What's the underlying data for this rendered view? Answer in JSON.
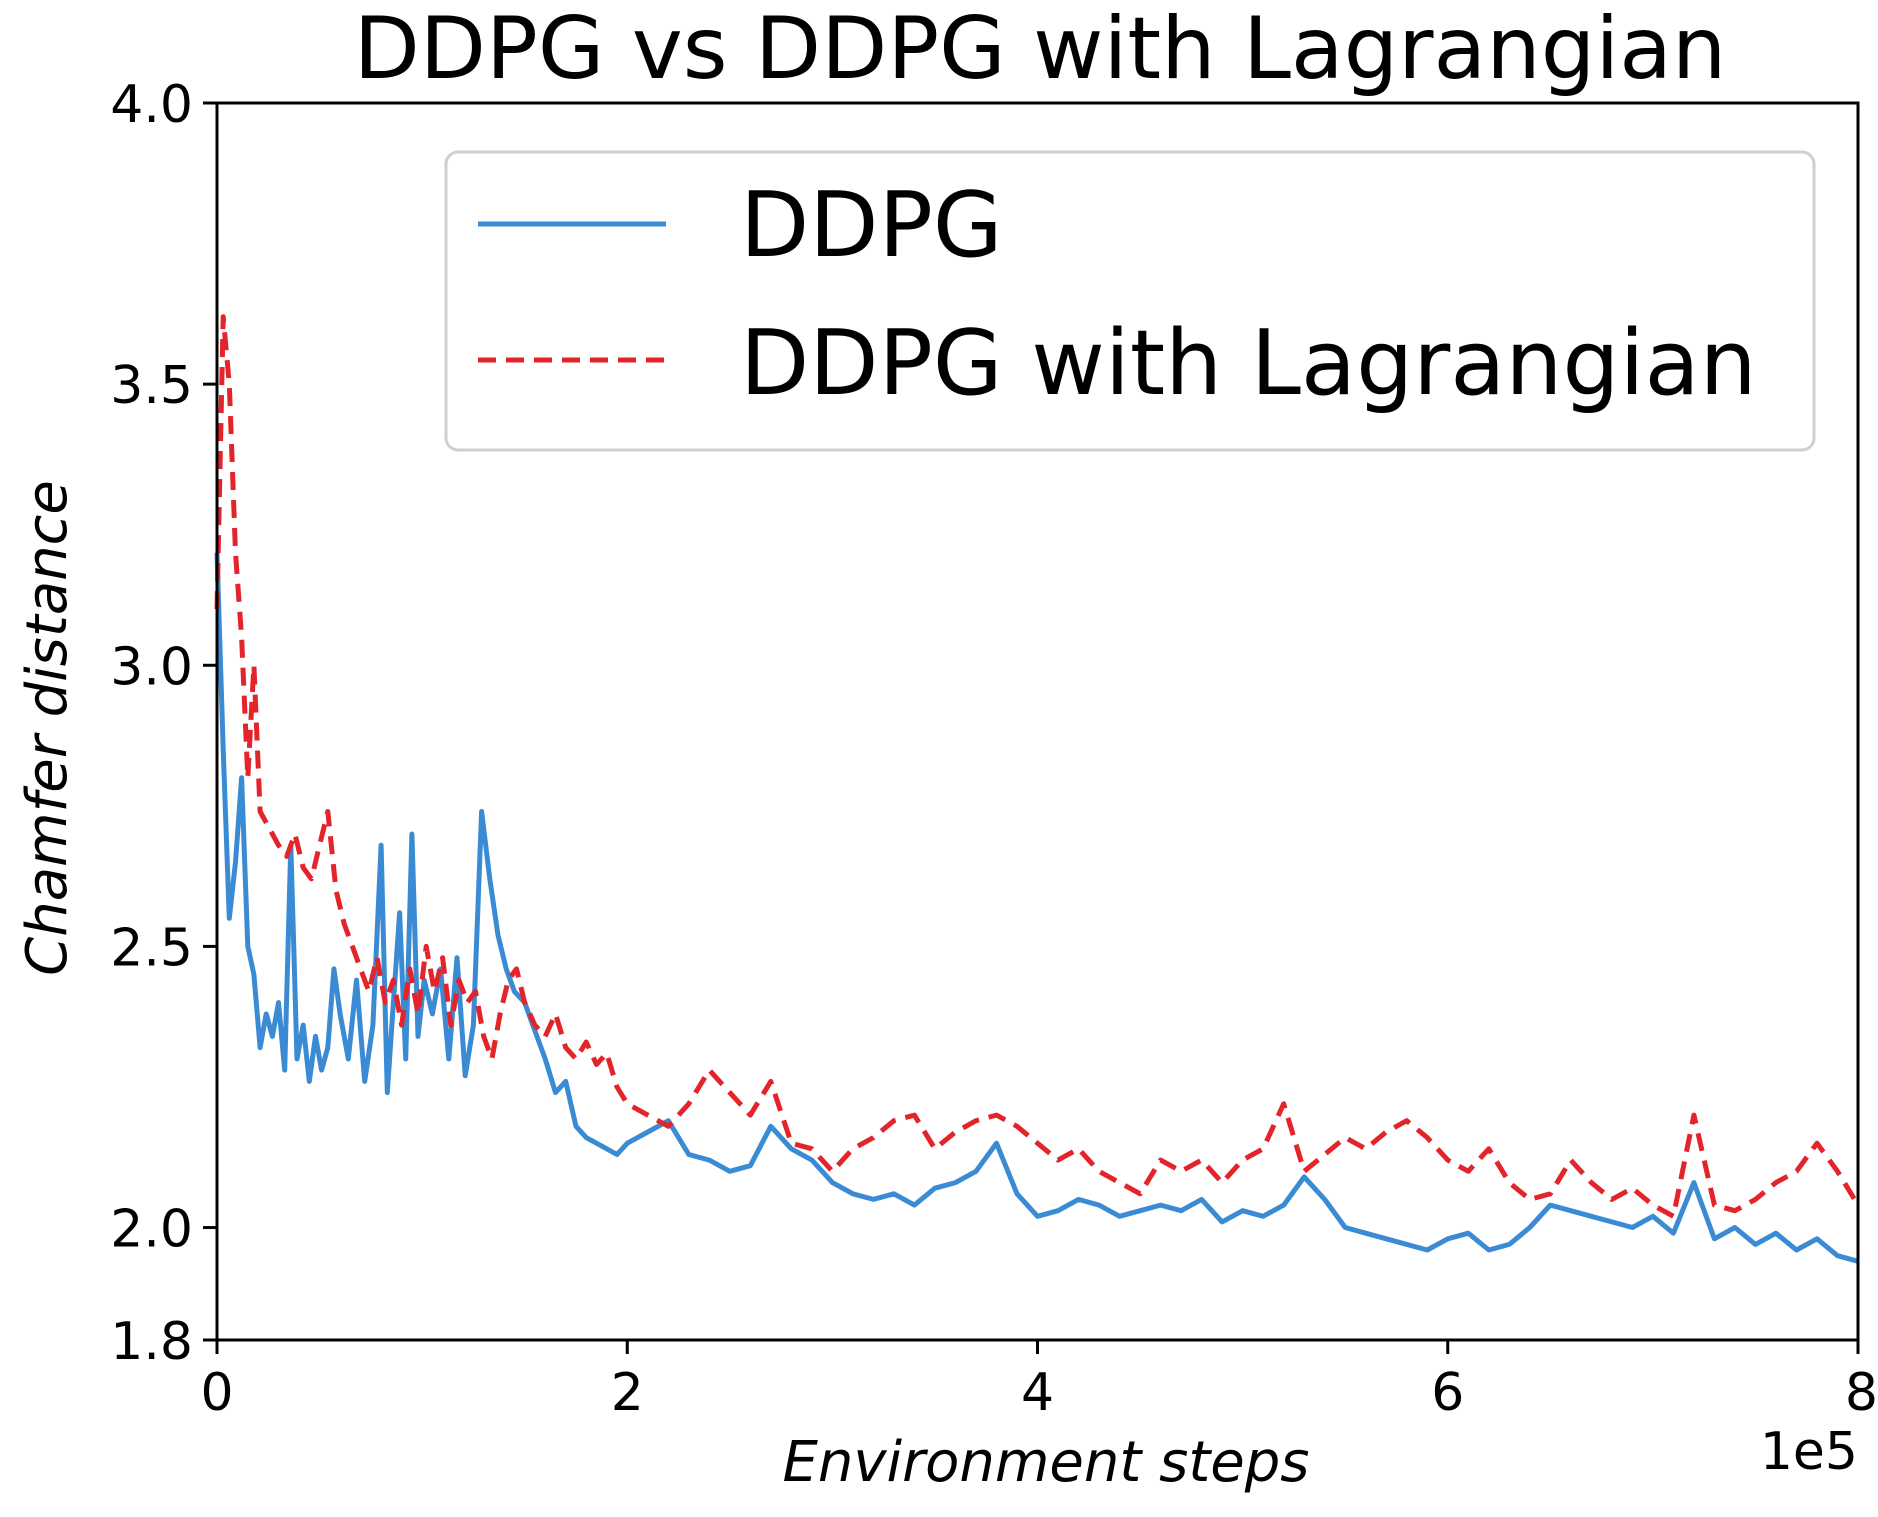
{
  "chart_data": {
    "type": "line",
    "title": "DDPG vs DDPG with Lagrangian",
    "xlabel": "Environment steps",
    "ylabel": "Chamfer distance",
    "x_offset_label": "1e5",
    "xlim": [
      0,
      8
    ],
    "ylim": [
      1.8,
      4.0
    ],
    "xticks": [
      0,
      2,
      4,
      6,
      8
    ],
    "xtick_labels": [
      "0",
      "2",
      "4",
      "6",
      "8"
    ],
    "yticks": [
      1.8,
      2.0,
      2.5,
      3.0,
      3.5,
      4.0
    ],
    "ytick_labels": [
      "1.8",
      "2.0",
      "2.5",
      "3.0",
      "3.5",
      "4.0"
    ],
    "grid": false,
    "legend_position": "top-right",
    "series": [
      {
        "name": "DDPG",
        "color": "#3b8bd4",
        "style": "solid",
        "x": [
          0.0,
          0.03,
          0.06,
          0.09,
          0.12,
          0.15,
          0.18,
          0.21,
          0.24,
          0.27,
          0.3,
          0.33,
          0.36,
          0.39,
          0.42,
          0.45,
          0.48,
          0.51,
          0.54,
          0.57,
          0.6,
          0.64,
          0.68,
          0.72,
          0.76,
          0.8,
          0.83,
          0.86,
          0.89,
          0.92,
          0.95,
          0.98,
          1.01,
          1.05,
          1.09,
          1.13,
          1.17,
          1.21,
          1.25,
          1.29,
          1.33,
          1.37,
          1.41,
          1.45,
          1.5,
          1.55,
          1.6,
          1.65,
          1.7,
          1.75,
          1.8,
          1.85,
          1.9,
          1.95,
          2.0,
          2.1,
          2.2,
          2.3,
          2.4,
          2.5,
          2.6,
          2.7,
          2.8,
          2.9,
          3.0,
          3.1,
          3.2,
          3.3,
          3.4,
          3.5,
          3.6,
          3.7,
          3.8,
          3.9,
          4.0,
          4.1,
          4.2,
          4.3,
          4.4,
          4.5,
          4.6,
          4.7,
          4.8,
          4.9,
          5.0,
          5.1,
          5.2,
          5.3,
          5.4,
          5.5,
          5.6,
          5.7,
          5.8,
          5.9,
          6.0,
          6.1,
          6.2,
          6.3,
          6.4,
          6.5,
          6.6,
          6.7,
          6.8,
          6.9,
          7.0,
          7.1,
          7.2,
          7.3,
          7.4,
          7.5,
          7.6,
          7.7,
          7.8,
          7.9,
          8.0
        ],
        "values": [
          3.2,
          2.85,
          2.55,
          2.65,
          2.8,
          2.5,
          2.45,
          2.32,
          2.38,
          2.34,
          2.4,
          2.28,
          2.68,
          2.3,
          2.36,
          2.26,
          2.34,
          2.28,
          2.32,
          2.46,
          2.38,
          2.3,
          2.44,
          2.26,
          2.36,
          2.68,
          2.24,
          2.4,
          2.56,
          2.3,
          2.7,
          2.34,
          2.44,
          2.38,
          2.46,
          2.3,
          2.48,
          2.27,
          2.36,
          2.74,
          2.62,
          2.52,
          2.46,
          2.42,
          2.4,
          2.35,
          2.3,
          2.24,
          2.26,
          2.18,
          2.16,
          2.15,
          2.14,
          2.13,
          2.15,
          2.17,
          2.19,
          2.13,
          2.12,
          2.1,
          2.11,
          2.18,
          2.14,
          2.12,
          2.08,
          2.06,
          2.05,
          2.06,
          2.04,
          2.07,
          2.08,
          2.1,
          2.15,
          2.06,
          2.02,
          2.03,
          2.05,
          2.04,
          2.02,
          2.03,
          2.04,
          2.03,
          2.05,
          2.01,
          2.03,
          2.02,
          2.04,
          2.09,
          2.05,
          2.0,
          1.99,
          1.98,
          1.97,
          1.96,
          1.98,
          1.99,
          1.96,
          1.97,
          2.0,
          2.04,
          2.03,
          2.02,
          2.01,
          2.0,
          2.02,
          1.99,
          2.08,
          1.98,
          2.0,
          1.97,
          1.99,
          1.96,
          1.98,
          1.95,
          1.94
        ]
      },
      {
        "name": "DDPG with Lagrangian",
        "color": "#e3242b",
        "style": "dashed",
        "x": [
          0.0,
          0.03,
          0.06,
          0.09,
          0.12,
          0.15,
          0.18,
          0.21,
          0.24,
          0.27,
          0.3,
          0.34,
          0.38,
          0.42,
          0.46,
          0.5,
          0.54,
          0.58,
          0.62,
          0.66,
          0.7,
          0.74,
          0.78,
          0.82,
          0.86,
          0.9,
          0.94,
          0.98,
          1.02,
          1.06,
          1.1,
          1.14,
          1.18,
          1.22,
          1.26,
          1.3,
          1.34,
          1.38,
          1.42,
          1.46,
          1.5,
          1.55,
          1.6,
          1.65,
          1.7,
          1.75,
          1.8,
          1.85,
          1.9,
          1.95,
          2.0,
          2.1,
          2.2,
          2.3,
          2.4,
          2.5,
          2.6,
          2.7,
          2.8,
          2.9,
          3.0,
          3.1,
          3.2,
          3.3,
          3.4,
          3.5,
          3.6,
          3.7,
          3.8,
          3.9,
          4.0,
          4.1,
          4.2,
          4.3,
          4.4,
          4.5,
          4.6,
          4.7,
          4.8,
          4.9,
          5.0,
          5.1,
          5.2,
          5.3,
          5.4,
          5.5,
          5.6,
          5.7,
          5.8,
          5.9,
          6.0,
          6.1,
          6.2,
          6.3,
          6.4,
          6.5,
          6.6,
          6.7,
          6.8,
          6.9,
          7.0,
          7.1,
          7.2,
          7.3,
          7.4,
          7.5,
          7.6,
          7.7,
          7.8,
          7.9,
          8.0
        ],
        "values": [
          3.1,
          3.62,
          3.5,
          3.2,
          3.05,
          2.8,
          3.0,
          2.74,
          2.72,
          2.7,
          2.68,
          2.66,
          2.7,
          2.64,
          2.62,
          2.68,
          2.74,
          2.6,
          2.54,
          2.5,
          2.46,
          2.42,
          2.48,
          2.4,
          2.44,
          2.36,
          2.46,
          2.38,
          2.5,
          2.42,
          2.48,
          2.36,
          2.44,
          2.4,
          2.42,
          2.34,
          2.3,
          2.38,
          2.44,
          2.46,
          2.4,
          2.36,
          2.34,
          2.38,
          2.32,
          2.3,
          2.33,
          2.29,
          2.31,
          2.25,
          2.22,
          2.2,
          2.18,
          2.22,
          2.28,
          2.24,
          2.2,
          2.26,
          2.15,
          2.14,
          2.1,
          2.14,
          2.16,
          2.19,
          2.2,
          2.14,
          2.17,
          2.19,
          2.2,
          2.18,
          2.15,
          2.12,
          2.14,
          2.1,
          2.08,
          2.06,
          2.12,
          2.1,
          2.12,
          2.08,
          2.12,
          2.14,
          2.22,
          2.1,
          2.13,
          2.16,
          2.14,
          2.17,
          2.19,
          2.16,
          2.12,
          2.1,
          2.14,
          2.08,
          2.05,
          2.06,
          2.12,
          2.08,
          2.05,
          2.07,
          2.04,
          2.02,
          2.2,
          2.04,
          2.03,
          2.05,
          2.08,
          2.1,
          2.15,
          2.1,
          2.04
        ]
      }
    ]
  }
}
